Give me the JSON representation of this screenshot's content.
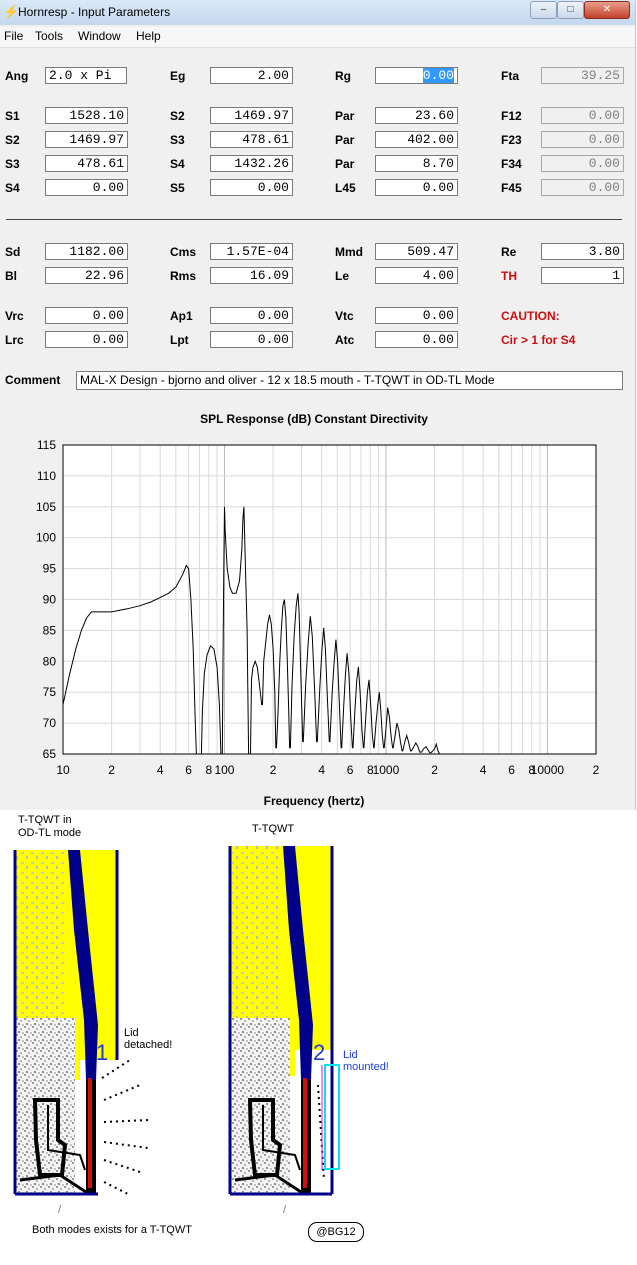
{
  "window": {
    "title": "Hornresp - Input Parameters"
  },
  "menu": [
    "File",
    "Tools",
    "Window",
    "Help"
  ],
  "params": {
    "Ang": "2.0 x Pi",
    "Eg": "2.00",
    "Rg": "0.00",
    "Fta": "39.25",
    "S1": "1528.10",
    "S2a": "1469.97",
    "Par1": "23.60",
    "F12": "0.00",
    "S2": "1469.97",
    "S3a": "478.61",
    "Par2": "402.00",
    "F23": "0.00",
    "S3": "478.61",
    "S4a": "1432.26",
    "Par3": "8.70",
    "F34": "0.00",
    "S4": "0.00",
    "S5": "0.00",
    "L45": "0.00",
    "F45": "0.00",
    "Sd": "1182.00",
    "Cms": "1.57E-04",
    "Mmd": "509.47",
    "Re": "3.80",
    "Bl": "22.96",
    "Rms": "16.09",
    "Le": "4.00",
    "TH": "1",
    "Vrc": "0.00",
    "Ap1": "0.00",
    "Vtc": "0.00",
    "Lrc": "0.00",
    "Lpt": "0.00",
    "Atc": "0.00"
  },
  "labels": {
    "ang": "Ang",
    "eg": "Eg",
    "rg": "Rg",
    "fta": "Fta",
    "s1": "S1",
    "s2": "S2",
    "s3": "S3",
    "s4": "S4",
    "s5": "S5",
    "par": "Par",
    "l45": "L45",
    "f12": "F12",
    "f23": "F23",
    "f34": "F34",
    "f45": "F45",
    "sd": "Sd",
    "cms": "Cms",
    "mmd": "Mmd",
    "re": "Re",
    "bl": "Bl",
    "rms": "Rms",
    "le": "Le",
    "th": "TH",
    "vrc": "Vrc",
    "ap1": "Ap1",
    "vtc": "Vtc",
    "caution": "CAUTION:",
    "lrc": "Lrc",
    "lpt": "Lpt",
    "atc": "Atc",
    "caution_msg": "Cir > 1 for S4",
    "comment": "Comment"
  },
  "comment": "MAL-X Design - bjorno and oliver - 12 x 18.5 mouth - T-TQWT in OD-TL Mode",
  "chart_data": {
    "type": "line",
    "title": "SPL Response (dB)   Constant Directivity",
    "xlabel": "Frequency (hertz)",
    "ylabel": "",
    "xscale": "log",
    "xlim": [
      10,
      20000
    ],
    "ylim": [
      65,
      115
    ],
    "yticks": [
      65,
      70,
      75,
      80,
      85,
      90,
      95,
      100,
      105,
      110,
      115
    ],
    "xtick_labels": [
      "10",
      "2",
      "4",
      "6",
      "8",
      "100",
      "2",
      "4",
      "6",
      "8",
      "1000",
      "2",
      "4",
      "6",
      "8",
      "10000",
      "2"
    ],
    "grid": true,
    "series": [
      {
        "points": [
          [
            10,
            73
          ],
          [
            11,
            78
          ],
          [
            12,
            82
          ],
          [
            13,
            85
          ],
          [
            14,
            87
          ],
          [
            15,
            88
          ],
          [
            17,
            88
          ],
          [
            20,
            88
          ],
          [
            25,
            88.5
          ],
          [
            30,
            89
          ],
          [
            35,
            89.6
          ],
          [
            40,
            90.3
          ],
          [
            45,
            91
          ],
          [
            50,
            92
          ],
          [
            55,
            94
          ],
          [
            58,
            95.5
          ],
          [
            60,
            95
          ],
          [
            62,
            90
          ],
          [
            64,
            82
          ],
          [
            66,
            70
          ],
          [
            67,
            65
          ],
          [
            72,
            65
          ],
          [
            73,
            72
          ],
          [
            75,
            78
          ],
          [
            78,
            81
          ],
          [
            82,
            82.5
          ],
          [
            86,
            82
          ],
          [
            90,
            79
          ],
          [
            93,
            73
          ],
          [
            95,
            65
          ],
          [
            97,
            65
          ],
          [
            98,
            80
          ],
          [
            99,
            95
          ],
          [
            100,
            105
          ],
          [
            101,
            101
          ],
          [
            104,
            95
          ],
          [
            108,
            92
          ],
          [
            112,
            91
          ],
          [
            118,
            91
          ],
          [
            124,
            93
          ],
          [
            128,
            98
          ],
          [
            130,
            103
          ],
          [
            132,
            105
          ],
          [
            134,
            98
          ],
          [
            138,
            85
          ],
          [
            141,
            65
          ],
          [
            145,
            65
          ],
          [
            147,
            77
          ],
          [
            150,
            79
          ],
          [
            155,
            80
          ],
          [
            160,
            79
          ],
          [
            165,
            76
          ],
          [
            170,
            73
          ],
          [
            172,
            73
          ],
          [
            175,
            80
          ],
          [
            180,
            83
          ],
          [
            185,
            86
          ],
          [
            190,
            87.5
          ],
          [
            195,
            86
          ],
          [
            200,
            82
          ],
          [
            205,
            75
          ],
          [
            208,
            66
          ],
          [
            210,
            66
          ],
          [
            215,
            72
          ],
          [
            220,
            80
          ],
          [
            225,
            85
          ],
          [
            230,
            89
          ],
          [
            235,
            90
          ],
          [
            240,
            87
          ],
          [
            245,
            80
          ],
          [
            250,
            72
          ],
          [
            253,
            66
          ],
          [
            256,
            66
          ],
          [
            262,
            76
          ],
          [
            270,
            84
          ],
          [
            278,
            89
          ],
          [
            285,
            91
          ],
          [
            290,
            88
          ],
          [
            297,
            78
          ],
          [
            305,
            67
          ],
          [
            308,
            67
          ],
          [
            318,
            76
          ],
          [
            330,
            83
          ],
          [
            340,
            87.3
          ],
          [
            350,
            84
          ],
          [
            362,
            75
          ],
          [
            372,
            67
          ],
          [
            376,
            67
          ],
          [
            390,
            76
          ],
          [
            402,
            82
          ],
          [
            412,
            85.4
          ],
          [
            422,
            82
          ],
          [
            434,
            74
          ],
          [
            446,
            67
          ],
          [
            450,
            67
          ],
          [
            465,
            75
          ],
          [
            478,
            80
          ],
          [
            490,
            83.5
          ],
          [
            502,
            80
          ],
          [
            515,
            73
          ],
          [
            528,
            66
          ],
          [
            532,
            66
          ],
          [
            548,
            73
          ],
          [
            562,
            78
          ],
          [
            575,
            81.3
          ],
          [
            590,
            78
          ],
          [
            605,
            71
          ],
          [
            620,
            66
          ],
          [
            625,
            66
          ],
          [
            642,
            72
          ],
          [
            660,
            77
          ],
          [
            675,
            79.1
          ],
          [
            692,
            75
          ],
          [
            710,
            69
          ],
          [
            725,
            66
          ],
          [
            730,
            66
          ],
          [
            750,
            71
          ],
          [
            768,
            75
          ],
          [
            785,
            77
          ],
          [
            805,
            73
          ],
          [
            825,
            68
          ],
          [
            840,
            66
          ],
          [
            845,
            66
          ],
          [
            868,
            70
          ],
          [
            890,
            73
          ],
          [
            910,
            75
          ],
          [
            930,
            72
          ],
          [
            950,
            68
          ],
          [
            968,
            66
          ],
          [
            975,
            66
          ],
          [
            1000,
            69
          ],
          [
            1025,
            72.5
          ],
          [
            1050,
            71
          ],
          [
            1075,
            68
          ],
          [
            1100,
            66
          ],
          [
            1110,
            66
          ],
          [
            1140,
            68
          ],
          [
            1170,
            70
          ],
          [
            1200,
            69
          ],
          [
            1230,
            67
          ],
          [
            1260,
            65.5
          ],
          [
            1270,
            65.5
          ],
          [
            1310,
            67
          ],
          [
            1345,
            68
          ],
          [
            1380,
            67
          ],
          [
            1420,
            65.5
          ],
          [
            1440,
            65.5
          ],
          [
            1490,
            66.2
          ],
          [
            1530,
            66.8
          ],
          [
            1570,
            66.3
          ],
          [
            1620,
            65.3
          ],
          [
            1660,
            65.3
          ],
          [
            1720,
            65.9
          ],
          [
            1770,
            66.2
          ],
          [
            1820,
            65.7
          ],
          [
            1870,
            65.2
          ],
          [
            1900,
            65.2
          ],
          [
            2000,
            65.8
          ],
          [
            2050,
            66.6
          ],
          [
            2100,
            65.5
          ],
          [
            2150,
            65
          ]
        ]
      }
    ]
  },
  "annotations": {
    "left_title": [
      "T-TQWT in",
      "OD-TL mode"
    ],
    "right_title": "T-TQWT",
    "num1": "1",
    "num2": "2",
    "lid_detached": [
      "Lid",
      "detached!"
    ],
    "lid_mounted": [
      "Lid",
      "mounted!"
    ],
    "footer": "Both modes exists for a T-TQWT",
    "badge": "@BG12",
    "slash1": "/",
    "slash2": "/"
  },
  "colors": {
    "yellow": "#ffff00",
    "blue": "#00008b",
    "red": "#d01010",
    "cyan": "#00e5ee",
    "caution": "#cc1010",
    "selection": "#3399ff"
  }
}
